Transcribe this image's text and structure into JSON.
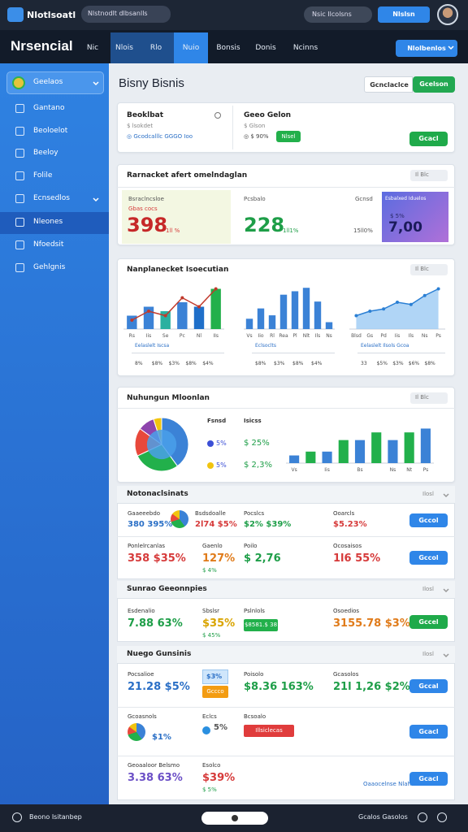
{
  "topbar": {
    "app_name": "Nlotlsoatl",
    "search": "Nlstnodlt dlbsanlls",
    "status": "Nsic Ilcolsns",
    "button": "Nlslsn"
  },
  "header": {
    "title": "Nrsencial",
    "tabs": [
      "Nic",
      "Nlois",
      "Rlo",
      "Nuio",
      "Bonsis",
      "Donis",
      "Ncinns"
    ],
    "button": "Nlolbenlos"
  },
  "sidebar": {
    "items": [
      "Geelaos",
      "Gantano",
      "Beoloelot",
      "Beeloy",
      "Folile",
      "Ecnsedlos",
      "Nleones",
      "Nfoedsit",
      "Gehlgnis"
    ]
  },
  "page": {
    "title": "Bisny Bisnis",
    "toggle": [
      "Gcnclaclce",
      "Gcelson"
    ]
  },
  "summary": {
    "left": {
      "title": "Beoklbat",
      "subtitle": "$ lsokdet",
      "meta": "◎ Gcodcalllc  GGGO  Ioo"
    },
    "right": {
      "title": "Geeo Gelon",
      "subtitle": "$ Glson",
      "meta": "◎ $ 90%",
      "badge": "Nlsel"
    },
    "button": "Gcacl"
  },
  "market": {
    "title": "Rarnacket afert omelndaglan",
    "chip": "Il Blc",
    "stats": [
      {
        "label": "Bsraclncsloe",
        "note": "Gbas cocs",
        "value": "398",
        "change": "1ll %"
      },
      {
        "label": "Pcsbalo",
        "value": "228",
        "change": "1ll1%"
      },
      {
        "label": "Gcnsd",
        "change": "15ll0%"
      },
      {
        "label": "Esbalxed Iduelos",
        "note": "$ 5%",
        "value": "7,00"
      }
    ]
  },
  "execution": {
    "title": "Nanplanecket Isoecutian",
    "chip": "Il Blc",
    "charts": [
      {
        "type": "combo",
        "categories": [
          "Rs",
          "Iis",
          "Se",
          "Pc",
          "Nl",
          "IIs"
        ],
        "values": [
          3,
          5,
          4,
          6,
          5,
          9
        ],
        "line": [
          2,
          4,
          3,
          7,
          5,
          9
        ],
        "colors": [
          "#3b82d6",
          "#3b82d6",
          "#2bb0a0",
          "#3b82d6",
          "#1f6fc9",
          "#22b04b"
        ],
        "line_color": "#c0392b",
        "ylim": [
          0,
          10
        ],
        "link": "Eelaslelt Iscsa",
        "footer": [
          "8%",
          "$8%",
          "$3%",
          "$8%",
          "$4%"
        ]
      },
      {
        "type": "bar",
        "categories": [
          "Vs",
          "Iio",
          "Rl",
          "Rea",
          "Pl",
          "Nlt",
          "Ils",
          "Ns"
        ],
        "values": [
          3,
          6,
          4,
          10,
          11,
          12,
          8,
          2
        ],
        "colors": [
          "#3b82d6"
        ],
        "ylim": [
          0,
          13
        ],
        "link": "Eclsoclts",
        "footer": [
          "$8%",
          "$3%",
          "$8%",
          "$4%"
        ]
      },
      {
        "type": "area",
        "categories": [
          "Blsd",
          "Gs",
          "Pd",
          "Iis",
          "Ils",
          "Ns",
          "Ps"
        ],
        "values": [
          3,
          4,
          4.5,
          6,
          5.5,
          7.5,
          9
        ],
        "colors": [
          "#3b82d6"
        ],
        "ylim": [
          0,
          10
        ],
        "link": "Eelaslelt Ilsols Gcoa",
        "footer": [
          "33",
          "$5%",
          "$3%",
          "$6%",
          "$8%"
        ]
      }
    ]
  },
  "monitoring": {
    "title": "Nuhungun Mloonlan",
    "chip": "Il Blc",
    "pie": {
      "type": "pie",
      "values": [
        40,
        28,
        17,
        10,
        5
      ],
      "colors": [
        "#3b82d6",
        "#22b04b",
        "#e8483b",
        "#8e44ad",
        "#f1c40f"
      ]
    },
    "legend": {
      "headers": [
        "Fsnsd",
        "Isicss"
      ],
      "rows": [
        {
          "share": "5%",
          "change": "$ 25%",
          "color": "#3b4fd6"
        },
        {
          "share": "5%",
          "change": "$ 2,3%",
          "color": "#f1c40f"
        }
      ]
    },
    "bars": {
      "type": "bar",
      "categories": [
        "Vs",
        null,
        "Iis",
        null,
        "Bs",
        null,
        "Ns",
        "Nt",
        "Ps"
      ],
      "values": [
        2,
        3,
        3,
        6,
        6,
        8,
        6,
        8,
        9
      ],
      "colors": [
        "#3b82d6",
        "#22b04b"
      ],
      "ylim": [
        0,
        11
      ]
    }
  },
  "sections": [
    {
      "title": "Notonaclsinats",
      "menu": "Ilosl",
      "rows": [
        {
          "cells": [
            {
              "label": "Gaaeeebdo",
              "value": "380 395%",
              "tone": "blue"
            },
            {
              "label": "Bsdsdoalle",
              "value": "2l74 $5%",
              "tone": "red",
              "icon": "pie"
            },
            {
              "label": "Pocslcs",
              "value": "$2% $39%",
              "tone": "green"
            },
            {
              "label": "Ooarcls",
              "value": "$5.23%",
              "tone": "red"
            }
          ],
          "button": "Gccol",
          "button_color": "#2f86e8"
        },
        {
          "cells": [
            {
              "label": "Ponlelrcanlas",
              "value": "358 $35%",
              "tone": "red"
            },
            {
              "label": "Gaenlo",
              "value": "127%",
              "sub": "$ 4%",
              "tone": "orange"
            },
            {
              "label": "Poilo",
              "value": "$ 2,76",
              "tone": "green"
            },
            {
              "label": "Ocosaisos",
              "value": "1l6 55%",
              "tone": "red"
            }
          ],
          "button": "Gccol",
          "button_color": "#2f86e8"
        }
      ]
    },
    {
      "title": "Sunrao Geeonnpies",
      "menu": "Ilosl",
      "rows": [
        {
          "cells": [
            {
              "label": "Esdenalio",
              "value": "7.88 63%",
              "tone": "green"
            },
            {
              "label": "Sbslsr",
              "value": "$35%",
              "sub": "$ 45%",
              "tone": "yellow"
            },
            {
              "label": "Pslnlols",
              "badge": "$8581.$ 38",
              "badge_color": "#22b04b"
            },
            {
              "label": "Osoedios",
              "value": "3155.78 $3%",
              "tone": "orange"
            }
          ],
          "button": "Gccel",
          "button_color": "#1faa4a"
        }
      ]
    },
    {
      "title": "Nuego Gunsinis",
      "menu": "Ilosl",
      "rows": [
        {
          "cells": [
            {
              "label": "Pocsalioe",
              "value": "21.28 $5%",
              "tone": "blue"
            },
            {
              "tile": "$3%",
              "badge": "Gccco",
              "badge_color": "#f39c12"
            },
            {
              "label": "Poisolo",
              "value": "$8.36 163%",
              "tone": "green"
            },
            {
              "label": "Gcasolos",
              "value": "21l 1,26 $2%",
              "tone": "green"
            }
          ],
          "button": "Gccal",
          "button_color": "#2f86e8"
        },
        {
          "cells": [
            {
              "label": "Gcoasnols",
              "value": "$1%",
              "tone": "blue",
              "icon": "pie"
            },
            {
              "label": "Eclcs",
              "value": "5%",
              "tone": "gray",
              "icon": "dot"
            },
            {
              "label": "Bcsoalo",
              "badge": "Illsiclecas",
              "badge_color": "#e03c3c"
            }
          ],
          "button": "Gcacl",
          "button_color": "#2f86e8"
        },
        {
          "cells": [
            {
              "label": "Geoaaloor Belsmo",
              "value": "3.38 63%",
              "tone": "purple"
            },
            {
              "label": "Esolco",
              "value": "$39%",
              "sub": "$ 5%",
              "tone": "red"
            }
          ],
          "link": "Oaaocelnse Nlahs",
          "button": "Gcacl",
          "button_color": "#2f86e8"
        }
      ]
    }
  ],
  "bottombar": {
    "status": "Beono Isitanbep",
    "right": "Gcalos Gasolos"
  }
}
